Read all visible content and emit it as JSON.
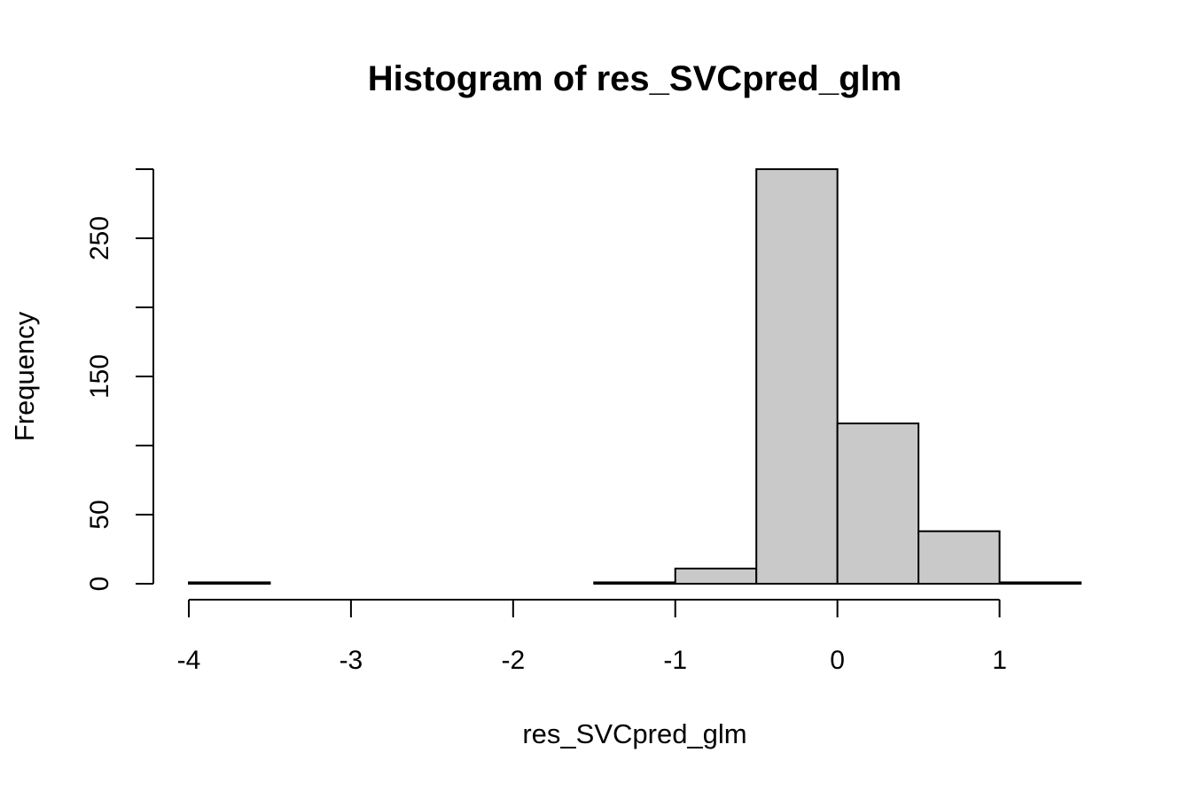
{
  "chart_data": {
    "type": "bar",
    "title": "Histogram of res_SVCpred_glm",
    "xlabel": "res_SVCpred_glm",
    "ylabel": "Frequency",
    "bins": [
      {
        "x0": -4.0,
        "x1": -3.5,
        "count": 1
      },
      {
        "x0": -3.5,
        "x1": -3.0,
        "count": 0
      },
      {
        "x0": -3.0,
        "x1": -2.5,
        "count": 0
      },
      {
        "x0": -2.5,
        "x1": -2.0,
        "count": 0
      },
      {
        "x0": -2.0,
        "x1": -1.5,
        "count": 0
      },
      {
        "x0": -1.5,
        "x1": -1.0,
        "count": 1
      },
      {
        "x0": -1.0,
        "x1": -0.5,
        "count": 11
      },
      {
        "x0": -0.5,
        "x1": 0.0,
        "count": 300
      },
      {
        "x0": 0.0,
        "x1": 0.5,
        "count": 116
      },
      {
        "x0": 0.5,
        "x1": 1.0,
        "count": 38
      },
      {
        "x0": 1.0,
        "x1": 1.5,
        "count": 1
      }
    ],
    "xlim": [
      -4,
      1.5
    ],
    "ylim": [
      0,
      300
    ],
    "x_ticks": [
      -4,
      -3,
      -2,
      -1,
      0,
      1
    ],
    "x_tick_labels": [
      "-4",
      "-3",
      "-2",
      "-1",
      "0",
      "1"
    ],
    "y_ticks": [
      0,
      50,
      100,
      150,
      200,
      250,
      300
    ],
    "y_tick_labels": [
      "0",
      "",
      "",
      "150",
      "",
      "250",
      ""
    ],
    "y_label_ticks": [
      0,
      50,
      150,
      250
    ],
    "y_label_texts": [
      "0",
      "50",
      "150",
      "250"
    ],
    "bar_fill": "#c9c9c9",
    "grid": false,
    "legend": "none"
  }
}
